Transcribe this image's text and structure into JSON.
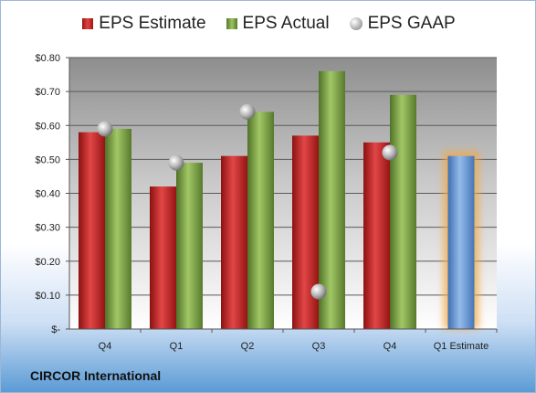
{
  "legend": {
    "estimate": "EPS Estimate",
    "actual": "EPS Actual",
    "gaap": "EPS GAAP"
  },
  "company": "CIRCOR International",
  "colors": {
    "estimate": "#c62828",
    "actual": "#7ea24a",
    "gaap": "#b0b0b0",
    "forecast": "#6f9fd8",
    "forecast_glow": "#f5a742"
  },
  "chart_data": {
    "type": "bar",
    "categories": [
      "Q4",
      "Q1",
      "Q2",
      "Q3",
      "Q4",
      "Q1 Estimate"
    ],
    "series": [
      {
        "name": "EPS Estimate",
        "values": [
          0.58,
          0.42,
          0.51,
          0.57,
          0.55,
          null
        ]
      },
      {
        "name": "EPS Actual",
        "values": [
          0.59,
          0.49,
          0.64,
          0.76,
          0.69,
          null
        ]
      },
      {
        "name": "EPS GAAP",
        "type": "scatter",
        "values": [
          0.59,
          0.49,
          0.64,
          0.11,
          0.52,
          null
        ]
      },
      {
        "name": "",
        "values": [
          null,
          null,
          null,
          null,
          null,
          0.51
        ]
      }
    ],
    "ylim": [
      0,
      0.8
    ],
    "yticks": [
      0,
      0.1,
      0.2,
      0.3,
      0.4,
      0.5,
      0.6,
      0.7,
      0.8
    ],
    "ytick_labels": [
      "$-",
      "$0.10",
      "$0.20",
      "$0.30",
      "$0.40",
      "$0.50",
      "$0.60",
      "$0.70",
      "$0.80"
    ],
    "legend_position": "top",
    "grid": true
  }
}
